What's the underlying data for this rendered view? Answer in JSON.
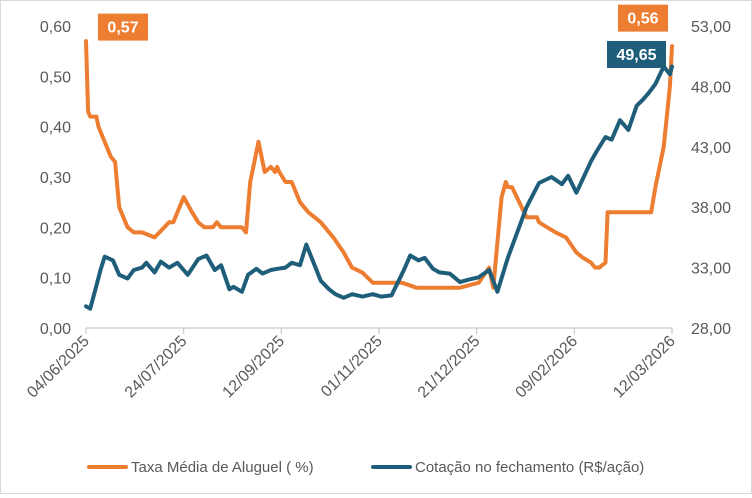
{
  "chart_data": {
    "type": "line",
    "title": "",
    "x_tick_labels": [
      "04/06/2025",
      "24/07/2025",
      "12/09/2025",
      "01/11/2025",
      "21/12/2025",
      "09/02/2026",
      "12/03/2026"
    ],
    "y_left": {
      "ticks": [
        "0,00",
        "0,10",
        "0,20",
        "0,30",
        "0,40",
        "0,50",
        "0,60"
      ],
      "ylim": [
        0,
        0.6
      ]
    },
    "y_right": {
      "ticks": [
        "28,00",
        "33,00",
        "38,00",
        "43,00",
        "48,00",
        "53,00"
      ],
      "ylim": [
        28,
        53
      ]
    },
    "grid": false,
    "legend_position": "bottom",
    "series": [
      {
        "name": "Taxa Média de Aluguel ( %)",
        "axis": "left",
        "color": "#ED7D31",
        "x": [
          "2025-06-04",
          "2025-06-05",
          "2025-06-06",
          "2025-06-09",
          "2025-06-10",
          "2025-06-12",
          "2025-06-16",
          "2025-06-18",
          "2025-06-20",
          "2025-06-24",
          "2025-06-27",
          "2025-07-01",
          "2025-07-07",
          "2025-07-14",
          "2025-07-16",
          "2025-07-21",
          "2025-07-25",
          "2025-07-28",
          "2025-07-31",
          "2025-08-04",
          "2025-08-06",
          "2025-08-08",
          "2025-08-11",
          "2025-08-18",
          "2025-08-20",
          "2025-08-22",
          "2025-08-26",
          "2025-08-29",
          "2025-09-01",
          "2025-09-03",
          "2025-09-04",
          "2025-09-05",
          "2025-09-08",
          "2025-09-11",
          "2025-09-15",
          "2025-09-19",
          "2025-09-25",
          "2025-10-01",
          "2025-10-06",
          "2025-10-10",
          "2025-10-15",
          "2025-10-20",
          "2025-10-24",
          "2025-10-28",
          "2025-11-03",
          "2025-11-10",
          "2025-11-20",
          "2025-12-01",
          "2025-12-10",
          "2025-12-15",
          "2025-12-17",
          "2025-12-19",
          "2025-12-21",
          "2025-12-23",
          "2025-12-24",
          "2025-12-26",
          "2026-01-02",
          "2026-01-07",
          "2026-01-08",
          "2026-01-16",
          "2026-01-21",
          "2026-01-26",
          "2026-01-29",
          "2026-02-02",
          "2026-02-04",
          "2026-02-06",
          "2026-02-09",
          "2026-02-10",
          "2026-02-16",
          "2026-02-18",
          "2026-03-03",
          "2026-03-05",
          "2026-03-09",
          "2026-03-12",
          "2026-03-13"
        ],
        "values": [
          0.57,
          0.43,
          0.42,
          0.42,
          0.4,
          0.38,
          0.34,
          0.33,
          0.24,
          0.2,
          0.19,
          0.19,
          0.18,
          0.21,
          0.21,
          0.26,
          0.23,
          0.21,
          0.2,
          0.2,
          0.21,
          0.2,
          0.2,
          0.2,
          0.19,
          0.29,
          0.37,
          0.31,
          0.32,
          0.31,
          0.32,
          0.31,
          0.29,
          0.29,
          0.25,
          0.23,
          0.21,
          0.18,
          0.15,
          0.12,
          0.11,
          0.09,
          0.09,
          0.09,
          0.09,
          0.08,
          0.08,
          0.08,
          0.09,
          0.12,
          0.08,
          0.17,
          0.26,
          0.29,
          0.28,
          0.28,
          0.22,
          0.22,
          0.21,
          0.19,
          0.18,
          0.15,
          0.14,
          0.13,
          0.12,
          0.12,
          0.13,
          0.23,
          0.23,
          0.23,
          0.23,
          0.28,
          0.36,
          0.48,
          0.56
        ]
      },
      {
        "name": "Cotação no fechamento (R$/ação)",
        "axis": "right",
        "color": "#1F5E7A",
        "x": [
          "2025-06-04",
          "2025-06-06",
          "2025-06-09",
          "2025-06-11",
          "2025-06-13",
          "2025-06-17",
          "2025-06-20",
          "2025-06-24",
          "2025-06-27",
          "2025-07-01",
          "2025-07-03",
          "2025-07-07",
          "2025-07-10",
          "2025-07-14",
          "2025-07-18",
          "2025-07-23",
          "2025-07-28",
          "2025-08-01",
          "2025-08-05",
          "2025-08-08",
          "2025-08-12",
          "2025-08-14",
          "2025-08-18",
          "2025-08-21",
          "2025-08-25",
          "2025-08-28",
          "2025-09-01",
          "2025-09-04",
          "2025-09-08",
          "2025-09-11",
          "2025-09-15",
          "2025-09-18",
          "2025-09-22",
          "2025-09-25",
          "2025-09-29",
          "2025-10-02",
          "2025-10-06",
          "2025-10-10",
          "2025-10-15",
          "2025-10-20",
          "2025-10-24",
          "2025-10-29",
          "2025-11-04",
          "2025-11-07",
          "2025-11-11",
          "2025-11-14",
          "2025-11-18",
          "2025-11-21",
          "2025-11-26",
          "2025-12-01",
          "2025-12-05",
          "2025-12-10",
          "2025-12-15",
          "2025-12-19",
          "2025-12-24",
          "2026-01-02",
          "2026-01-08",
          "2026-01-14",
          "2026-01-19",
          "2026-01-22",
          "2026-01-26",
          "2026-01-29",
          "2026-02-02",
          "2026-02-05",
          "2026-02-09",
          "2026-02-12",
          "2026-02-16",
          "2026-02-20",
          "2026-02-24",
          "2026-02-27",
          "2026-03-02",
          "2026-03-05",
          "2026-03-09",
          "2026-03-12",
          "2026-03-13"
        ],
        "values": [
          29.8,
          29.6,
          31.5,
          32.8,
          33.9,
          33.6,
          32.4,
          32.1,
          32.8,
          33.0,
          33.4,
          32.6,
          33.5,
          33.0,
          33.4,
          32.4,
          33.7,
          34.0,
          32.8,
          33.2,
          31.2,
          31.4,
          31.0,
          32.4,
          32.9,
          32.5,
          32.8,
          32.9,
          33.0,
          33.4,
          33.2,
          34.9,
          33.2,
          31.9,
          31.2,
          30.8,
          30.5,
          30.8,
          30.6,
          30.8,
          30.6,
          30.7,
          32.8,
          34.0,
          33.6,
          33.8,
          32.9,
          32.6,
          32.5,
          31.8,
          32.0,
          32.2,
          32.8,
          31.0,
          33.8,
          38.0,
          40.0,
          40.5,
          39.9,
          40.6,
          39.2,
          40.3,
          41.8,
          42.7,
          43.8,
          43.6,
          45.2,
          44.4,
          46.4,
          46.9,
          47.5,
          48.2,
          49.65,
          49.0,
          49.65
        ]
      }
    ],
    "data_labels": [
      {
        "series": 0,
        "index": 0,
        "text": "0,57"
      },
      {
        "series": 0,
        "index": 74,
        "text": "0,56"
      },
      {
        "series": 1,
        "index": 74,
        "text": "49,65"
      }
    ]
  },
  "axis_color": "#bfbfbf",
  "label_color": "#595959"
}
